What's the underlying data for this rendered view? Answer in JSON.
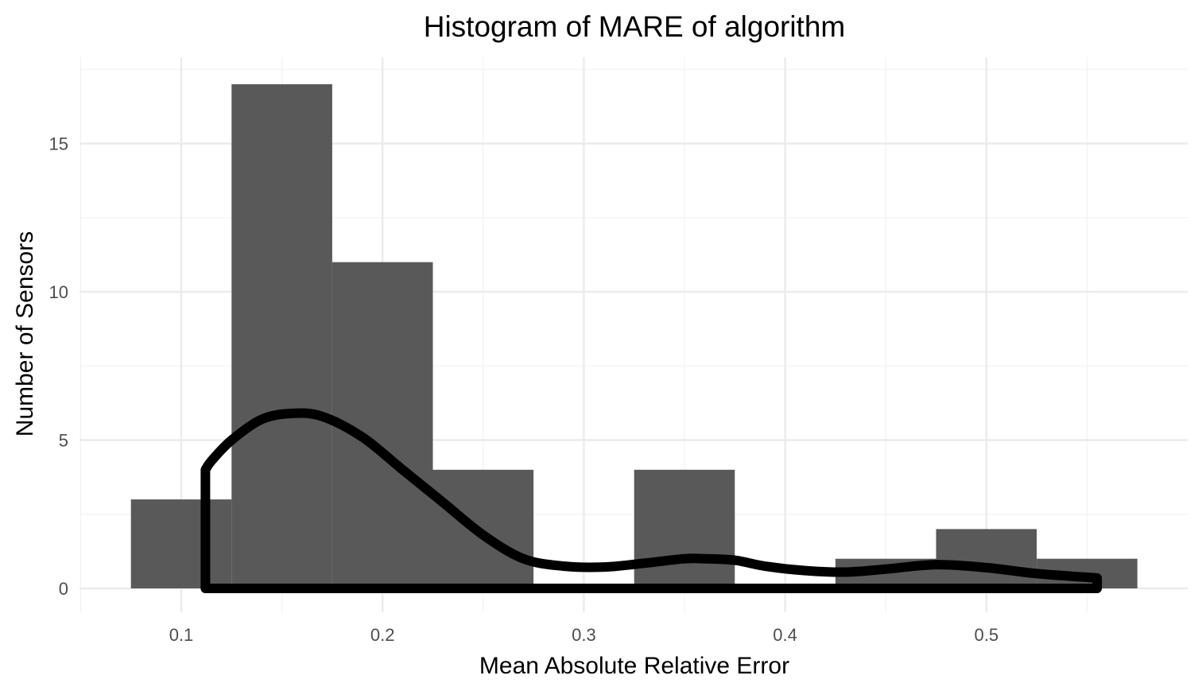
{
  "chart_data": {
    "type": "bar",
    "subtype": "histogram_with_density",
    "title": "Histogram of MARE of algorithm",
    "xlabel": "Mean Absolute Relative Error",
    "ylabel": "Number of Sensors",
    "xlim": [
      0.05,
      0.6
    ],
    "ylim": [
      0,
      17.5
    ],
    "x_ticks": [
      0.1,
      0.2,
      0.3,
      0.4,
      0.5
    ],
    "x_tick_labels": [
      "0.1",
      "0.2",
      "0.3",
      "0.4",
      "0.5"
    ],
    "y_ticks": [
      0,
      5,
      10,
      15
    ],
    "y_tick_labels": [
      "0",
      "5",
      "10",
      "15"
    ],
    "grid": true,
    "legend": "none",
    "bin_width": 0.05,
    "bins": [
      {
        "x0": 0.075,
        "x1": 0.125,
        "count": 3
      },
      {
        "x0": 0.125,
        "x1": 0.175,
        "count": 17
      },
      {
        "x0": 0.175,
        "x1": 0.225,
        "count": 11
      },
      {
        "x0": 0.225,
        "x1": 0.275,
        "count": 4
      },
      {
        "x0": 0.275,
        "x1": 0.325,
        "count": 0
      },
      {
        "x0": 0.325,
        "x1": 0.375,
        "count": 4
      },
      {
        "x0": 0.375,
        "x1": 0.425,
        "count": 0
      },
      {
        "x0": 0.425,
        "x1": 0.475,
        "count": 1
      },
      {
        "x0": 0.475,
        "x1": 0.525,
        "count": 2
      },
      {
        "x0": 0.525,
        "x1": 0.575,
        "count": 1
      }
    ],
    "density_curve": {
      "x": [
        0.112,
        0.115,
        0.125,
        0.14,
        0.155,
        0.17,
        0.19,
        0.21,
        0.23,
        0.25,
        0.27,
        0.29,
        0.31,
        0.33,
        0.35,
        0.36,
        0.375,
        0.39,
        0.41,
        0.43,
        0.45,
        0.475,
        0.5,
        0.525,
        0.555
      ],
      "y": [
        4.0,
        4.3,
        5.0,
        5.7,
        5.9,
        5.8,
        5.1,
        4.0,
        2.9,
        1.8,
        1.0,
        0.75,
        0.72,
        0.85,
        1.0,
        1.0,
        0.95,
        0.75,
        0.6,
        0.55,
        0.65,
        0.8,
        0.7,
        0.5,
        0.35
      ],
      "baseline": 0,
      "color": "#000000"
    },
    "colors": {
      "bar": "#595959",
      "grid": "#ebebeb",
      "background": "#ffffff"
    }
  }
}
